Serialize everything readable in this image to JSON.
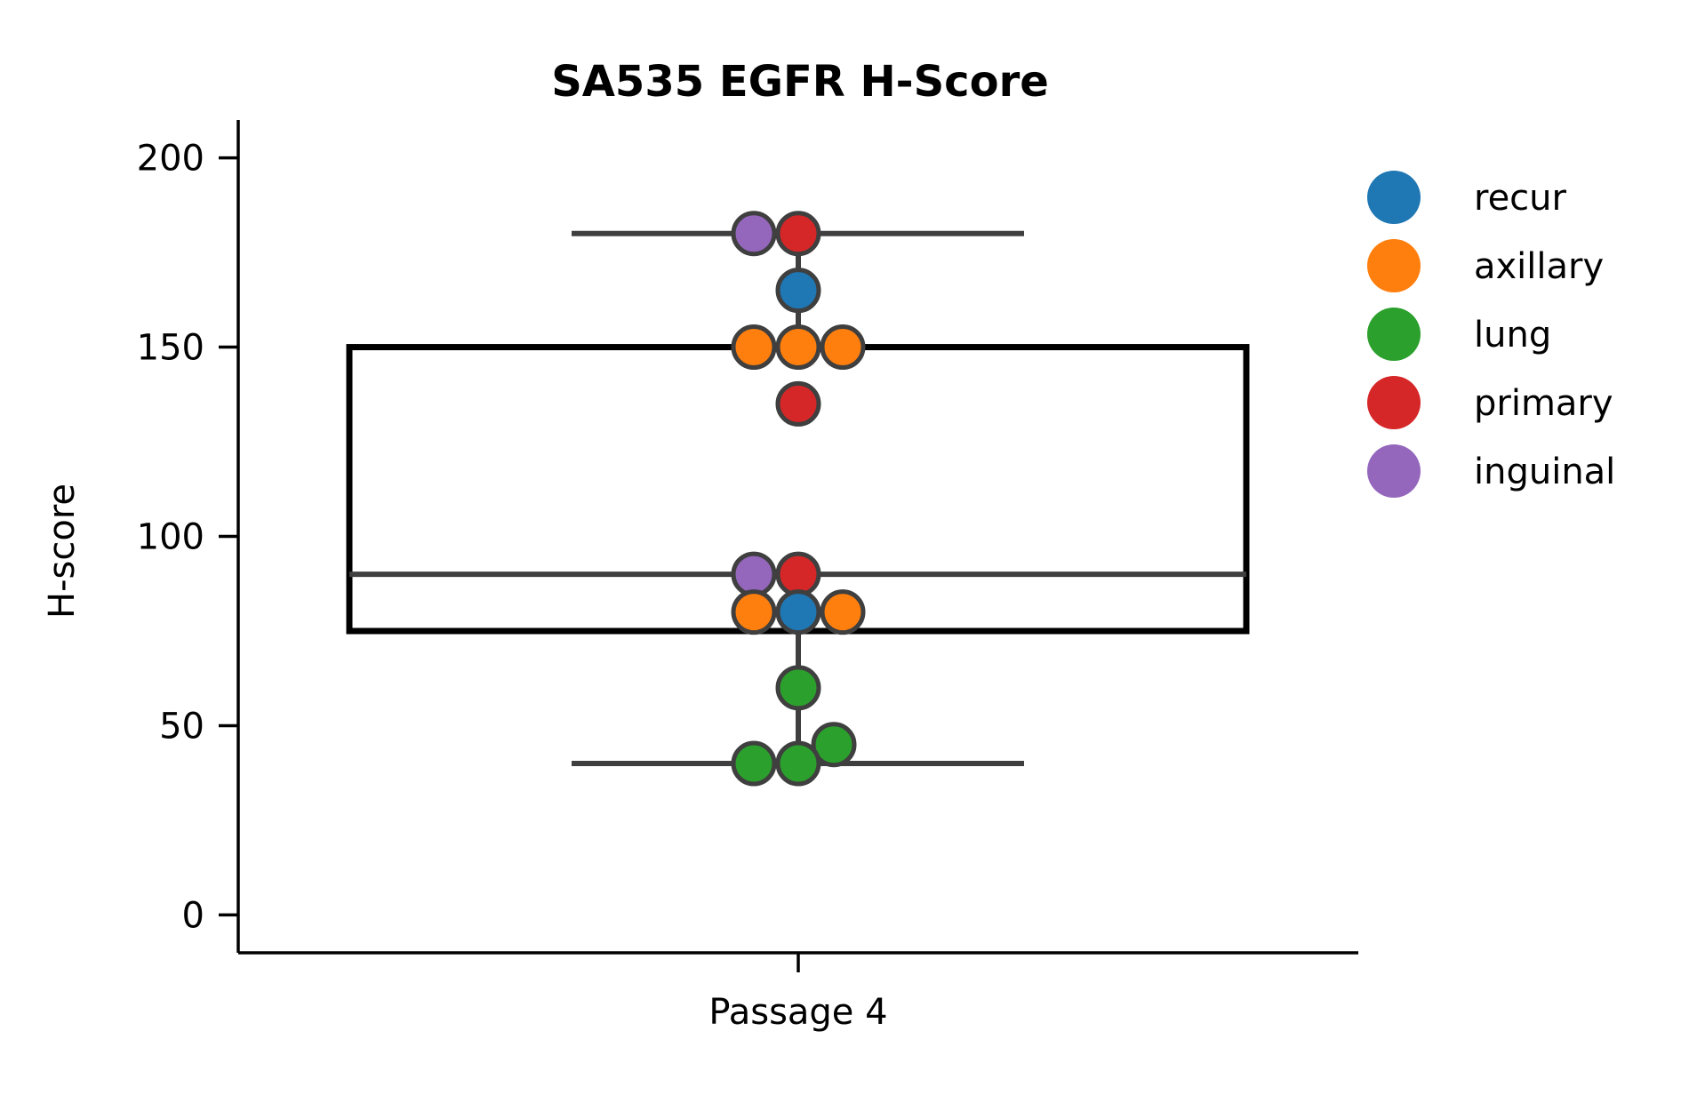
{
  "chart_data": {
    "type": "box",
    "title": "SA535 EGFR H-Score",
    "xlabel": "",
    "ylabel": "H-score",
    "categories": [
      "Passage 4"
    ],
    "ylim": [
      -10,
      210
    ],
    "yticks": [
      0,
      50,
      100,
      150,
      200
    ],
    "grid": false,
    "legend_position": "right",
    "box": {
      "category": "Passage 4",
      "whisker_low": 40,
      "q1": 75,
      "median": 90,
      "q3": 150,
      "whisker_high": 180
    },
    "legend": [
      {
        "label": "recur",
        "color": "#1f77b4"
      },
      {
        "label": "axillary",
        "color": "#ff7f0e"
      },
      {
        "label": "lung",
        "color": "#2ca02c"
      },
      {
        "label": "primary",
        "color": "#d62728"
      },
      {
        "label": "inguinal",
        "color": "#9467bd"
      }
    ],
    "points": [
      {
        "group": "inguinal",
        "y": 180
      },
      {
        "group": "primary",
        "y": 180
      },
      {
        "group": "recur",
        "y": 165
      },
      {
        "group": "axillary",
        "y": 150
      },
      {
        "group": "axillary",
        "y": 150
      },
      {
        "group": "axillary",
        "y": 150
      },
      {
        "group": "primary",
        "y": 135
      },
      {
        "group": "inguinal",
        "y": 90
      },
      {
        "group": "primary",
        "y": 90
      },
      {
        "group": "axillary",
        "y": 80
      },
      {
        "group": "recur",
        "y": 80
      },
      {
        "group": "axillary",
        "y": 80
      },
      {
        "group": "lung",
        "y": 60
      },
      {
        "group": "lung",
        "y": 45
      },
      {
        "group": "lung",
        "y": 40
      },
      {
        "group": "lung",
        "y": 40
      }
    ]
  }
}
